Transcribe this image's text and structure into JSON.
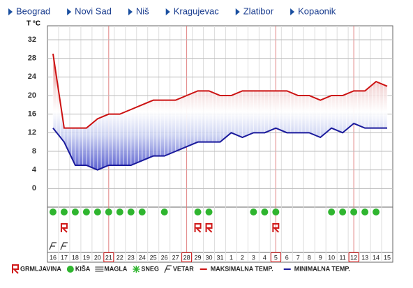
{
  "nav": [
    "Beograd",
    "Novi Sad",
    "Niš",
    "Kragujevac",
    "Zlatibor",
    "Kopaonik"
  ],
  "chart_data": {
    "type": "line",
    "y_label": "T °C",
    "categories": [
      "16",
      "17",
      "18",
      "19",
      "20",
      "21",
      "22",
      "23",
      "24",
      "25",
      "26",
      "27",
      "28",
      "29",
      "30",
      "31",
      "1",
      "2",
      "3",
      "4",
      "5",
      "6",
      "7",
      "8",
      "9",
      "10",
      "11",
      "12",
      "13",
      "14",
      "15"
    ],
    "highlighted": [
      false,
      false,
      false,
      false,
      false,
      true,
      false,
      false,
      false,
      false,
      false,
      false,
      true,
      false,
      false,
      false,
      false,
      false,
      false,
      false,
      true,
      false,
      false,
      false,
      false,
      false,
      false,
      true,
      false,
      false,
      false
    ],
    "series": [
      {
        "name": "MAKSIMALNA TEMP.",
        "color": "#cc1111",
        "values": [
          29,
          13,
          13,
          13,
          15,
          16,
          16,
          17,
          18,
          19,
          19,
          19,
          20,
          21,
          21,
          20,
          20,
          21,
          21,
          21,
          21,
          21,
          20,
          20,
          19,
          20,
          20,
          21,
          21,
          23,
          22
        ]
      },
      {
        "name": "MINIMALNA TEMP.",
        "color": "#1a1a9c",
        "values": [
          13,
          10,
          5,
          5,
          4,
          5,
          5,
          5,
          6,
          7,
          7,
          8,
          9,
          10,
          10,
          10,
          12,
          11,
          12,
          12,
          13,
          12,
          12,
          12,
          11,
          13,
          12,
          14,
          13,
          13,
          13
        ]
      }
    ],
    "ylim": [
      -4,
      35
    ],
    "yticks": [
      0,
      4,
      8,
      12,
      16,
      20,
      24,
      28,
      32
    ],
    "grid": true,
    "weather": [
      {
        "name": "GRMLJAVINA",
        "kind": "thunder",
        "days": [
          false,
          true,
          false,
          false,
          false,
          false,
          false,
          false,
          false,
          false,
          false,
          false,
          false,
          true,
          true,
          false,
          false,
          false,
          false,
          false,
          true,
          false,
          false,
          false,
          false,
          false,
          false,
          false,
          false,
          false,
          false
        ]
      },
      {
        "name": "KIŠA",
        "kind": "rain",
        "days": [
          true,
          true,
          true,
          true,
          true,
          true,
          true,
          true,
          true,
          false,
          true,
          false,
          false,
          true,
          true,
          false,
          false,
          false,
          true,
          true,
          true,
          false,
          false,
          false,
          false,
          true,
          true,
          true,
          true,
          true,
          false
        ]
      },
      {
        "name": "MAGLA",
        "kind": "fog",
        "days": [
          false,
          false,
          false,
          false,
          false,
          false,
          false,
          false,
          false,
          false,
          false,
          false,
          false,
          false,
          false,
          false,
          false,
          false,
          false,
          false,
          false,
          false,
          false,
          false,
          false,
          false,
          false,
          false,
          false,
          false,
          false
        ]
      },
      {
        "name": "SNEG",
        "kind": "snow",
        "days": [
          false,
          false,
          false,
          false,
          false,
          false,
          false,
          false,
          false,
          false,
          false,
          false,
          false,
          false,
          false,
          false,
          false,
          false,
          false,
          false,
          false,
          false,
          false,
          false,
          false,
          false,
          false,
          false,
          false,
          false,
          false
        ]
      },
      {
        "name": "VETAR",
        "kind": "wind",
        "days": [
          true,
          true,
          false,
          false,
          false,
          false,
          false,
          false,
          false,
          false,
          false,
          false,
          false,
          false,
          false,
          false,
          false,
          false,
          false,
          false,
          false,
          false,
          false,
          false,
          false,
          false,
          false,
          false,
          false,
          false,
          false
        ]
      }
    ]
  }
}
